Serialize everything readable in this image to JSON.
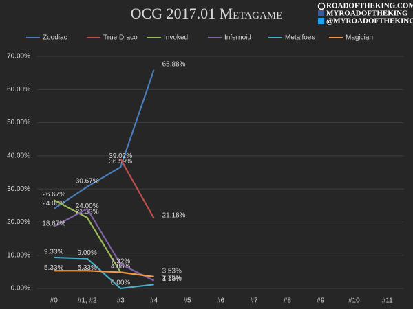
{
  "chart_data": {
    "type": "line",
    "title": "OCG 2017.01 Metagame",
    "watermark": [
      "ROADOFTHEKING.COM",
      "MYROADOFTHEKING",
      "@MYROADOFTHEKING"
    ],
    "categories": [
      "#0",
      "#1, #2",
      "#3",
      "#4",
      "#5",
      "#6",
      "#7",
      "#8",
      "#9",
      "#10",
      "#11"
    ],
    "series": [
      {
        "name": "Zoodiac",
        "color": "#4a7ebb",
        "values": [
          24.0,
          30.67,
          36.59,
          65.88,
          null,
          null,
          null,
          null,
          null,
          null,
          null
        ],
        "value_labels": [
          "24.00%",
          "30.67%",
          "36.59%",
          "65.88%",
          null,
          null,
          null,
          null,
          null,
          null,
          null
        ]
      },
      {
        "name": "True Draco",
        "color": "#c0504d",
        "values": [
          null,
          null,
          39.02,
          21.18,
          null,
          null,
          null,
          null,
          null,
          null,
          null
        ],
        "value_labels": [
          null,
          null,
          "39.02%",
          "21.18%",
          null,
          null,
          null,
          null,
          null,
          null,
          null
        ]
      },
      {
        "name": "Invoked",
        "color": "#9bbb59",
        "values": [
          26.67,
          21.33,
          4.88,
          3.53,
          null,
          null,
          null,
          null,
          null,
          null,
          null
        ],
        "value_labels": [
          "26.67%",
          "21.33%",
          "4.88%",
          "3.53%",
          null,
          null,
          null,
          null,
          null,
          null,
          null
        ]
      },
      {
        "name": "Infernoid",
        "color": "#8064a2",
        "values": [
          18.67,
          24.0,
          7.32,
          2.35,
          null,
          null,
          null,
          null,
          null,
          null,
          null
        ],
        "value_labels": [
          "18.67%",
          "24.00%",
          "7.32%",
          "2.35%",
          null,
          null,
          null,
          null,
          null,
          null,
          null
        ]
      },
      {
        "name": "Metalfoes",
        "color": "#4bacc6",
        "values": [
          9.33,
          9.0,
          0.0,
          1.18,
          null,
          null,
          null,
          null,
          null,
          null,
          null
        ],
        "value_labels": [
          "9.33%",
          "9.00%",
          "0.00%",
          "1.18%",
          null,
          null,
          null,
          null,
          null,
          null,
          null
        ]
      },
      {
        "name": "Magician",
        "color": "#f79646",
        "values": [
          5.33,
          5.33,
          4.88,
          3.53,
          null,
          null,
          null,
          null,
          null,
          null,
          null
        ],
        "value_labels": [
          "5.33%",
          "5.33%",
          null,
          null,
          null,
          null,
          null,
          null,
          null,
          null,
          null
        ]
      }
    ],
    "ylim": [
      0,
      70
    ],
    "yticks": [
      {
        "value": 0,
        "label": "0.00%"
      },
      {
        "value": 10,
        "label": "10.00%"
      },
      {
        "value": 20,
        "label": "20.00%"
      },
      {
        "value": 30,
        "label": "30.00%"
      },
      {
        "value": 40,
        "label": "40.00%"
      },
      {
        "value": 50,
        "label": "50.00%"
      },
      {
        "value": 60,
        "label": "60.00%"
      },
      {
        "value": 70,
        "label": "70.00%"
      }
    ],
    "grid": true,
    "legend": "top"
  }
}
